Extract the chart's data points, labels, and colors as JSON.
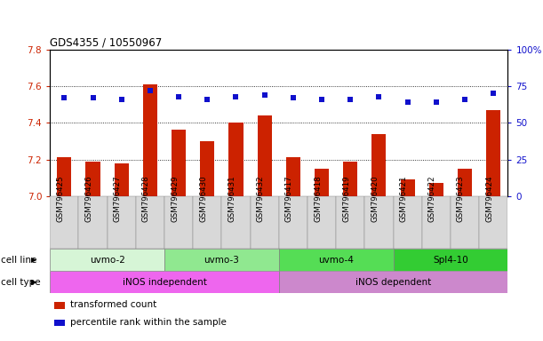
{
  "title": "GDS4355 / 10550967",
  "samples": [
    "GSM796425",
    "GSM796426",
    "GSM796427",
    "GSM796428",
    "GSM796429",
    "GSM796430",
    "GSM796431",
    "GSM796432",
    "GSM796417",
    "GSM796418",
    "GSM796419",
    "GSM796420",
    "GSM796421",
    "GSM796422",
    "GSM796423",
    "GSM796424"
  ],
  "bar_values": [
    7.21,
    7.19,
    7.18,
    7.61,
    7.36,
    7.3,
    7.4,
    7.44,
    7.21,
    7.15,
    7.19,
    7.34,
    7.09,
    7.07,
    7.15,
    7.47
  ],
  "dot_values": [
    67,
    67,
    66,
    72,
    68,
    66,
    68,
    69,
    67,
    66,
    66,
    68,
    64,
    64,
    66,
    70
  ],
  "ylim_left": [
    7.0,
    7.8
  ],
  "ylim_right": [
    0,
    100
  ],
  "yticks_left": [
    7.0,
    7.2,
    7.4,
    7.6,
    7.8
  ],
  "yticks_right": [
    0,
    25,
    50,
    75,
    100
  ],
  "ytick_labels_right": [
    "0",
    "25",
    "50",
    "75",
    "100%"
  ],
  "grid_values": [
    7.2,
    7.4,
    7.6
  ],
  "bar_color": "#cc2200",
  "dot_color": "#1010cc",
  "cell_lines": [
    {
      "label": "uvmo-2",
      "start": 0,
      "end": 4,
      "color": "#d6f5d6"
    },
    {
      "label": "uvmo-3",
      "start": 4,
      "end": 8,
      "color": "#90e890"
    },
    {
      "label": "uvmo-4",
      "start": 8,
      "end": 12,
      "color": "#55dd55"
    },
    {
      "label": "Spl4-10",
      "start": 12,
      "end": 16,
      "color": "#33cc33"
    }
  ],
  "cell_types": [
    {
      "label": "iNOS independent",
      "start": 0,
      "end": 8,
      "color": "#ee66ee"
    },
    {
      "label": "iNOS dependent",
      "start": 8,
      "end": 16,
      "color": "#cc88cc"
    }
  ],
  "cell_line_row_label": "cell line",
  "cell_type_row_label": "cell type",
  "legend_items": [
    {
      "color": "#cc2200",
      "label": "transformed count"
    },
    {
      "color": "#1010cc",
      "label": "percentile rank within the sample"
    }
  ],
  "background_color": "#ffffff",
  "tick_color_left": "#cc2200",
  "tick_color_right": "#1010cc",
  "bar_width": 0.5,
  "xlabel_bg": "#d8d8d8"
}
